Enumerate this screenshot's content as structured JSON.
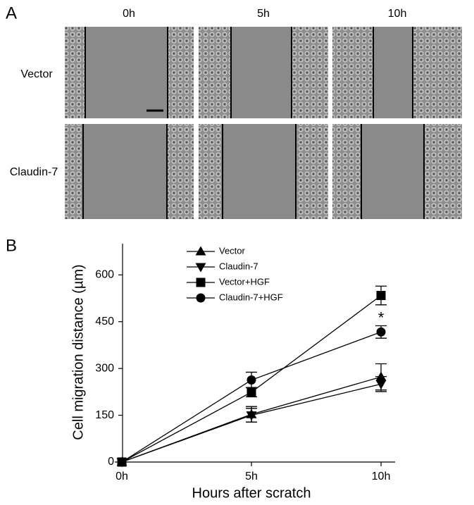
{
  "figure": {
    "panel_a_label": "A",
    "panel_b_label": "B",
    "columns": [
      "0h",
      "5h",
      "10h"
    ],
    "rows": [
      "Vector",
      "Claudin-7"
    ]
  },
  "chart_data": {
    "type": "line",
    "xlabel": "Hours after scratch",
    "ylabel": "Cell migration distance (µm)",
    "categories": [
      "0h",
      "5h",
      "10h"
    ],
    "ylim": [
      0,
      700
    ],
    "yticks": [
      0,
      150,
      300,
      450,
      600
    ],
    "legend": "upper center",
    "annotations": [
      {
        "text": "*",
        "series": 3,
        "index": 2
      }
    ],
    "series": [
      {
        "name": "Vector",
        "color": "#000000",
        "marker": "triangle-up",
        "values": [
          0,
          153,
          273
        ],
        "errors": [
          0,
          25,
          42
        ]
      },
      {
        "name": "Claudin-7",
        "color": "#000000",
        "marker": "triangle-down",
        "values": [
          0,
          150,
          250
        ],
        "errors": [
          0,
          22,
          24
        ]
      },
      {
        "name": "Vector+HGF",
        "color": "#000000",
        "marker": "square",
        "values": [
          0,
          224,
          534
        ],
        "errors": [
          0,
          15,
          30
        ]
      },
      {
        "name": "Claudin-7+HGF",
        "color": "#000000",
        "marker": "circle",
        "values": [
          0,
          263,
          417
        ],
        "errors": [
          0,
          25,
          20
        ]
      }
    ]
  }
}
